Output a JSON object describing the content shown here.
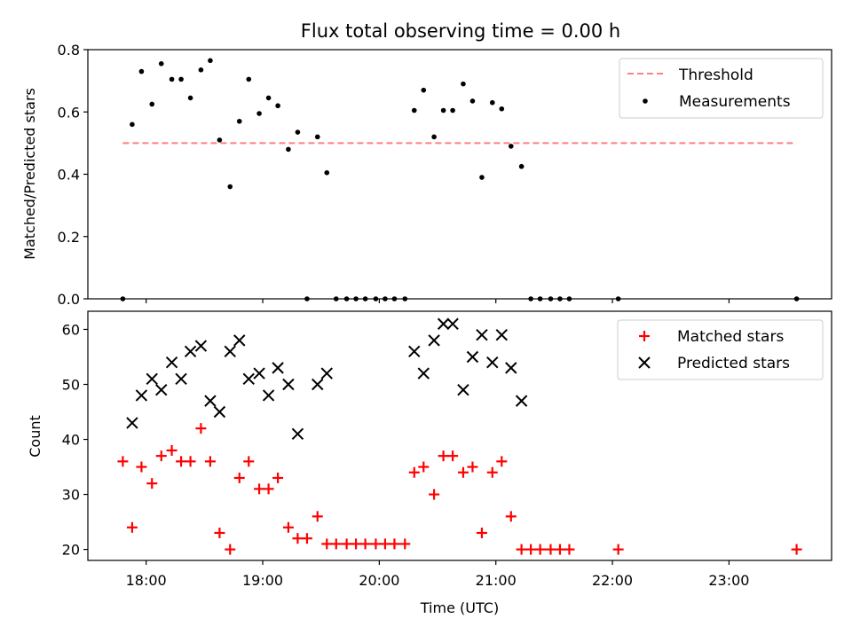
{
  "title": "Flux total observing time = 0.00 h",
  "chart_data": [
    {
      "type": "scatter",
      "ylabel": "Matched/Predicted stars",
      "xlim": [
        17.5,
        23.88
      ],
      "ylim": [
        0,
        0.8
      ],
      "yticks": [
        0.0,
        0.2,
        0.4,
        0.6,
        0.8
      ],
      "ytick_labels": [
        "0.0",
        "0.2",
        "0.4",
        "0.6",
        "0.8"
      ],
      "threshold": {
        "name": "Threshold",
        "value": 0.5,
        "x_range": [
          17.8,
          23.58
        ],
        "color": "#ff7f7f"
      },
      "series": [
        {
          "name": "Measurements",
          "color": "#000000",
          "points": [
            [
              17.8,
              0.0
            ],
            [
              17.88,
              0.56
            ],
            [
              17.96,
              0.73
            ],
            [
              18.05,
              0.625
            ],
            [
              18.13,
              0.755
            ],
            [
              18.22,
              0.705
            ],
            [
              18.3,
              0.705
            ],
            [
              18.38,
              0.645
            ],
            [
              18.47,
              0.735
            ],
            [
              18.55,
              0.765
            ],
            [
              18.63,
              0.51
            ],
            [
              18.72,
              0.36
            ],
            [
              18.8,
              0.57
            ],
            [
              18.88,
              0.705
            ],
            [
              18.97,
              0.595
            ],
            [
              19.05,
              0.645
            ],
            [
              19.13,
              0.62
            ],
            [
              19.22,
              0.48
            ],
            [
              19.3,
              0.535
            ],
            [
              19.38,
              0.0
            ],
            [
              19.47,
              0.52
            ],
            [
              19.55,
              0.405
            ],
            [
              19.63,
              0.0
            ],
            [
              19.72,
              0.0
            ],
            [
              19.8,
              0.0
            ],
            [
              19.88,
              0.0
            ],
            [
              19.97,
              0.0
            ],
            [
              20.05,
              0.0
            ],
            [
              20.13,
              0.0
            ],
            [
              20.22,
              0.0
            ],
            [
              20.3,
              0.605
            ],
            [
              20.38,
              0.67
            ],
            [
              20.47,
              0.52
            ],
            [
              20.55,
              0.605
            ],
            [
              20.63,
              0.605
            ],
            [
              20.72,
              0.69
            ],
            [
              20.8,
              0.635
            ],
            [
              20.88,
              0.39
            ],
            [
              20.97,
              0.63
            ],
            [
              21.05,
              0.61
            ],
            [
              21.13,
              0.49
            ],
            [
              21.22,
              0.425
            ],
            [
              21.3,
              0.0
            ],
            [
              21.38,
              0.0
            ],
            [
              21.47,
              0.0
            ],
            [
              21.55,
              0.0
            ],
            [
              21.63,
              0.0
            ],
            [
              22.05,
              0.0
            ],
            [
              23.58,
              0.0
            ]
          ]
        }
      ],
      "legend": {
        "placement": "top-right",
        "entries": [
          "Threshold",
          "Measurements"
        ]
      }
    },
    {
      "type": "scatter",
      "xlabel": "Time (UTC)",
      "ylabel": "Count",
      "xlim": [
        17.5,
        23.88
      ],
      "ylim": [
        18,
        63.3
      ],
      "xticks": [
        18,
        19,
        20,
        21,
        22,
        23
      ],
      "xtick_labels": [
        "18:00",
        "19:00",
        "20:00",
        "21:00",
        "22:00",
        "23:00"
      ],
      "yticks": [
        20,
        30,
        40,
        50,
        60
      ],
      "ytick_labels": [
        "20",
        "30",
        "40",
        "50",
        "60"
      ],
      "series": [
        {
          "name": "Matched stars",
          "marker": "plus",
          "color": "#ff0000",
          "points": [
            [
              17.8,
              36
            ],
            [
              17.88,
              24
            ],
            [
              17.96,
              35
            ],
            [
              18.05,
              32
            ],
            [
              18.13,
              37
            ],
            [
              18.22,
              38
            ],
            [
              18.3,
              36
            ],
            [
              18.38,
              36
            ],
            [
              18.47,
              42
            ],
            [
              18.55,
              36
            ],
            [
              18.63,
              23
            ],
            [
              18.72,
              20
            ],
            [
              18.8,
              33
            ],
            [
              18.88,
              36
            ],
            [
              18.97,
              31
            ],
            [
              19.05,
              31
            ],
            [
              19.13,
              33
            ],
            [
              19.22,
              24
            ],
            [
              19.3,
              22
            ],
            [
              19.38,
              22
            ],
            [
              19.47,
              26
            ],
            [
              19.55,
              21
            ],
            [
              19.63,
              21
            ],
            [
              19.72,
              21
            ],
            [
              19.8,
              21
            ],
            [
              19.88,
              21
            ],
            [
              19.97,
              21
            ],
            [
              20.05,
              21
            ],
            [
              20.13,
              21
            ],
            [
              20.22,
              21
            ],
            [
              20.3,
              34
            ],
            [
              20.38,
              35
            ],
            [
              20.47,
              30
            ],
            [
              20.55,
              37
            ],
            [
              20.63,
              37
            ],
            [
              20.72,
              34
            ],
            [
              20.8,
              35
            ],
            [
              20.88,
              23
            ],
            [
              20.97,
              34
            ],
            [
              21.05,
              36
            ],
            [
              21.13,
              26
            ],
            [
              21.22,
              20
            ],
            [
              21.3,
              20
            ],
            [
              21.38,
              20
            ],
            [
              21.47,
              20
            ],
            [
              21.55,
              20
            ],
            [
              21.63,
              20
            ],
            [
              22.05,
              20
            ],
            [
              23.58,
              20
            ]
          ]
        },
        {
          "name": "Predicted stars",
          "marker": "x",
          "color": "#000000",
          "points": [
            [
              17.88,
              43
            ],
            [
              17.96,
              48
            ],
            [
              18.05,
              51
            ],
            [
              18.13,
              49
            ],
            [
              18.22,
              54
            ],
            [
              18.3,
              51
            ],
            [
              18.38,
              56
            ],
            [
              18.47,
              57
            ],
            [
              18.55,
              47
            ],
            [
              18.63,
              45
            ],
            [
              18.72,
              56
            ],
            [
              18.8,
              58
            ],
            [
              18.88,
              51
            ],
            [
              18.97,
              52
            ],
            [
              19.05,
              48
            ],
            [
              19.13,
              53
            ],
            [
              19.22,
              50
            ],
            [
              19.3,
              41
            ],
            [
              19.47,
              50
            ],
            [
              19.55,
              52
            ],
            [
              20.3,
              56
            ],
            [
              20.38,
              52
            ],
            [
              20.47,
              58
            ],
            [
              20.55,
              61
            ],
            [
              20.63,
              61
            ],
            [
              20.72,
              49
            ],
            [
              20.8,
              55
            ],
            [
              20.88,
              59
            ],
            [
              20.97,
              54
            ],
            [
              21.05,
              59
            ],
            [
              21.13,
              53
            ],
            [
              21.22,
              47
            ]
          ]
        }
      ],
      "legend": {
        "placement": "top-right",
        "entries": [
          "Matched stars",
          "Predicted stars"
        ]
      }
    }
  ]
}
